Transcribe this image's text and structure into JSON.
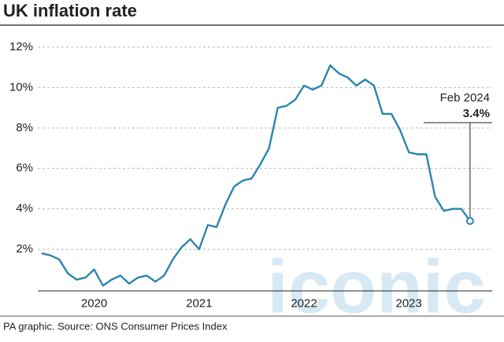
{
  "chart_data": {
    "type": "line",
    "title": "UK inflation rate",
    "categories": [
      null,
      null,
      null,
      null,
      null,
      null,
      "2020",
      null,
      null,
      null,
      null,
      null,
      null,
      null,
      null,
      null,
      null,
      null,
      "2021",
      null,
      null,
      null,
      null,
      null,
      null,
      null,
      null,
      null,
      null,
      null,
      "2022",
      null,
      null,
      null,
      null,
      null,
      null,
      null,
      null,
      null,
      null,
      null,
      "2023",
      null,
      null,
      null,
      null,
      null,
      null,
      null
    ],
    "series": [
      {
        "color": "#2a86ad",
        "values": [
          1.8,
          1.7,
          1.5,
          0.8,
          0.5,
          0.6,
          1.0,
          0.2,
          0.5,
          0.7,
          0.3,
          0.6,
          0.7,
          0.4,
          0.7,
          1.5,
          2.1,
          2.5,
          2.0,
          3.2,
          3.1,
          4.2,
          5.1,
          5.4,
          5.5,
          6.2,
          7.0,
          9.0,
          9.1,
          9.4,
          10.1,
          9.9,
          10.1,
          11.1,
          10.7,
          10.5,
          10.1,
          10.4,
          10.1,
          8.7,
          8.7,
          7.9,
          6.8,
          6.7,
          6.7,
          4.6,
          3.9,
          4.0,
          4.0,
          3.4
        ],
        "value_labels": [
          null,
          null,
          null,
          null,
          null,
          null,
          null,
          null,
          null,
          null,
          null,
          null,
          null,
          null,
          null,
          null,
          null,
          null,
          null,
          null,
          null,
          null,
          null,
          null,
          null,
          null,
          null,
          null,
          null,
          null,
          null,
          null,
          null,
          null,
          null,
          null,
          null,
          null,
          null,
          null,
          null,
          null,
          null,
          null,
          null,
          null,
          null,
          null,
          null,
          "3.4%"
        ]
      }
    ],
    "annotation": "Feb 2024",
    "ylim": [
      0,
      12
    ],
    "yticks": [
      {
        "value": 2,
        "label": "2%"
      },
      {
        "value": 4,
        "label": "4%"
      },
      {
        "value": 6,
        "label": "6%"
      },
      {
        "value": 8,
        "label": "8%"
      },
      {
        "value": 10,
        "label": "10%"
      },
      {
        "value": 12,
        "label": "12%"
      }
    ],
    "grid": true,
    "source": "PA graphic. Source: ONS Consumer Prices Index",
    "watermark": "iconic"
  }
}
